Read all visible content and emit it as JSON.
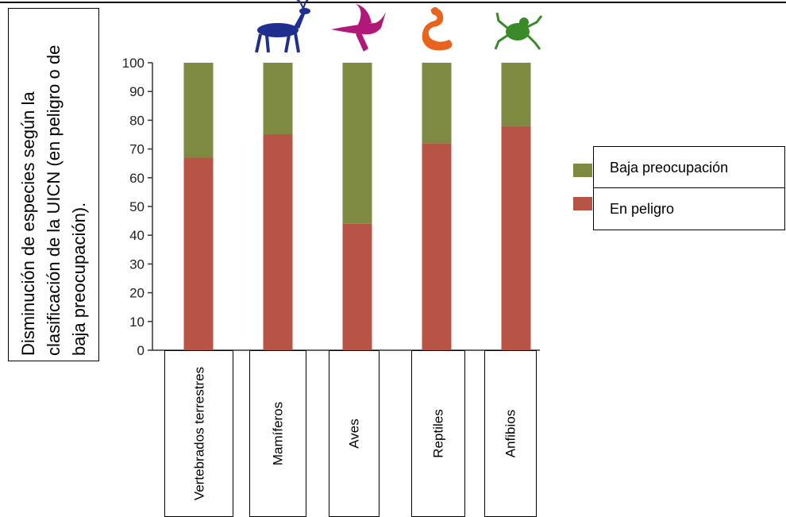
{
  "ylabel": "Disminución de especies según la clasificación de la UICN (en peligro o de baja preocupación).",
  "colors": {
    "baja": "#7d8a3f",
    "peligro": "#b75445",
    "deer": "#1f2f8f",
    "bird": "#b0187a",
    "snake": "#e8641e",
    "frog": "#3a8a2a"
  },
  "icons": [
    "deer-icon",
    "bird-icon",
    "snake-icon",
    "frog-icon"
  ],
  "legend": {
    "baja": "Baja preocupación",
    "peligro": "En peligro"
  },
  "chart_data": {
    "type": "bar",
    "stacked": true,
    "categories": [
      "Vertebrados terrestres",
      "Mamíferos",
      "Aves",
      "Reptiles",
      "Anfibios"
    ],
    "series": [
      {
        "name": "En peligro",
        "values": [
          67,
          75,
          44,
          72,
          78
        ]
      },
      {
        "name": "Baja preocupación",
        "values": [
          33,
          25,
          56,
          28,
          22
        ]
      }
    ],
    "yticks": [
      "0",
      "10",
      "20",
      "30",
      "40",
      "50",
      "60",
      "70",
      "80",
      "90",
      "100"
    ],
    "ylim": [
      0,
      100
    ],
    "legend_position": "right",
    "grid": false
  }
}
